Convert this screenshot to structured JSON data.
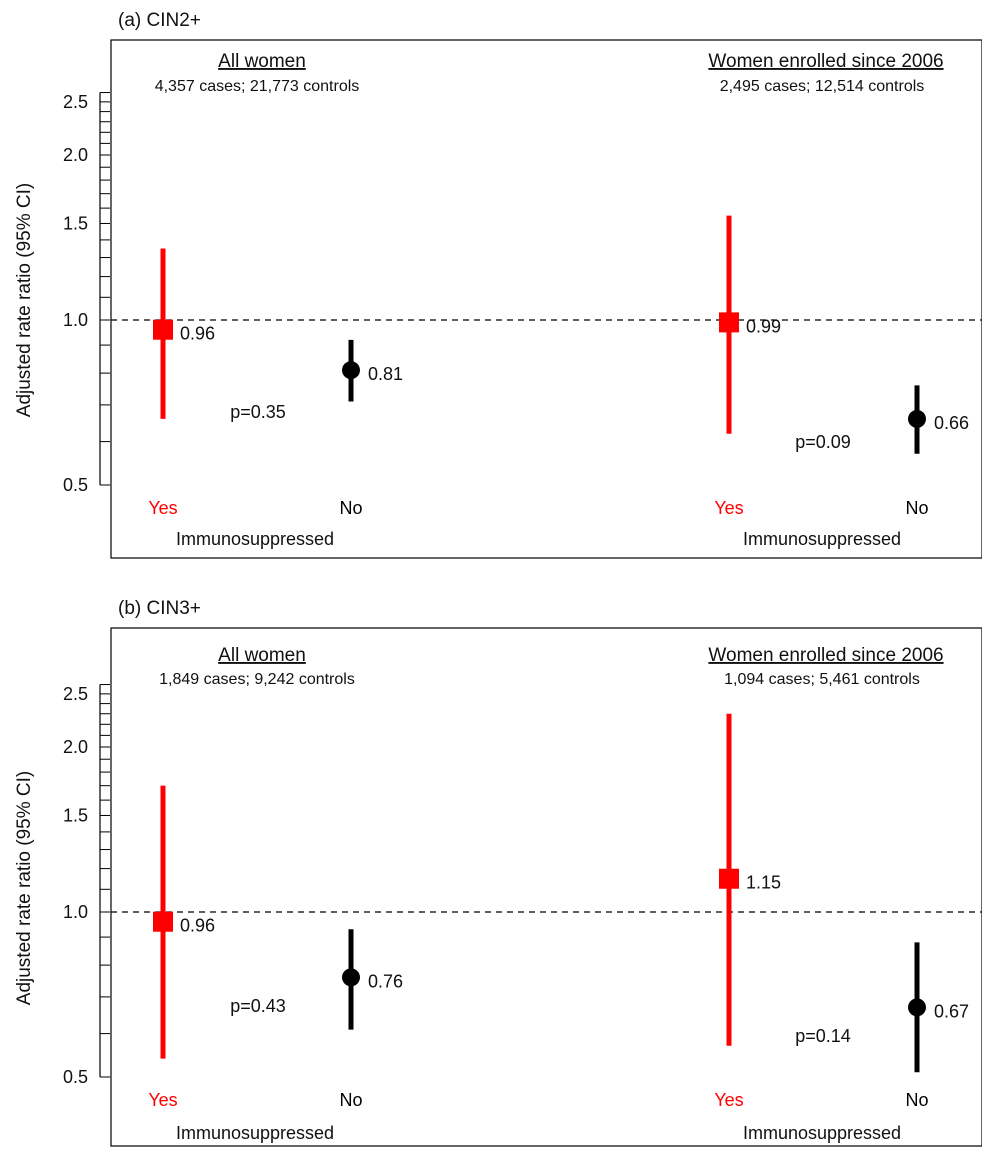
{
  "colors": {
    "immunosuppressed_yes": "#ff0000",
    "immunosuppressed_no": "#000000",
    "reference_line": "#000000"
  },
  "chart_data": [
    {
      "type": "scatter",
      "panel_label": "(a) CIN2+",
      "ylabel": "Adjusted rate ratio (95% CI)",
      "y_scale": "log",
      "ylim": [
        0.42,
        3.1
      ],
      "y_ticks": [
        "0.5",
        "1.0",
        "1.5",
        "2.0",
        "2.5"
      ],
      "reference_line": 1.0,
      "groups": [
        {
          "title": "All women",
          "counts": "4,357 cases; 21,773 controls",
          "xlabel": "Immunosuppressed",
          "p_value": "p=0.35",
          "points": [
            {
              "label": "Yes",
              "estimate": 0.96,
              "estimate_label": "0.96",
              "ci_low": 0.66,
              "ci_high": 1.35,
              "color": "#ff0000",
              "marker": "square"
            },
            {
              "label": "No",
              "estimate": 0.81,
              "estimate_label": "0.81",
              "ci_low": 0.71,
              "ci_high": 0.92,
              "color": "#000000",
              "marker": "circle"
            }
          ]
        },
        {
          "title": "Women enrolled since 2006",
          "counts": "2,495 cases; 12,514 controls",
          "xlabel": "Immunosuppressed",
          "p_value": "p=0.09",
          "points": [
            {
              "label": "Yes",
              "estimate": 0.99,
              "estimate_label": "0.99",
              "ci_low": 0.62,
              "ci_high": 1.55,
              "color": "#ff0000",
              "marker": "square"
            },
            {
              "label": "No",
              "estimate": 0.66,
              "estimate_label": "0.66",
              "ci_low": 0.57,
              "ci_high": 0.76,
              "color": "#000000",
              "marker": "circle"
            }
          ]
        }
      ]
    },
    {
      "type": "scatter",
      "panel_label": "(b) CIN3+",
      "ylabel": "Adjusted rate ratio (95% CI)",
      "y_scale": "log",
      "ylim": [
        0.42,
        3.1
      ],
      "y_ticks": [
        "0.5",
        "1.0",
        "1.5",
        "2.0",
        "2.5"
      ],
      "reference_line": 1.0,
      "groups": [
        {
          "title": "All women",
          "counts": "1,849 cases; 9,242 controls",
          "xlabel": "Immunosuppressed",
          "p_value": "p=0.43",
          "points": [
            {
              "label": "Yes",
              "estimate": 0.96,
              "estimate_label": "0.96",
              "ci_low": 0.54,
              "ci_high": 1.7,
              "color": "#ff0000",
              "marker": "square"
            },
            {
              "label": "No",
              "estimate": 0.76,
              "estimate_label": "0.76",
              "ci_low": 0.61,
              "ci_high": 0.93,
              "color": "#000000",
              "marker": "circle"
            }
          ]
        },
        {
          "title": "Women enrolled since 2006",
          "counts": "1,094 cases; 5,461 controls",
          "xlabel": "Immunosuppressed",
          "p_value": "p=0.14",
          "points": [
            {
              "label": "Yes",
              "estimate": 1.15,
              "estimate_label": "1.15",
              "ci_low": 0.57,
              "ci_high": 2.3,
              "color": "#ff0000",
              "marker": "square"
            },
            {
              "label": "No",
              "estimate": 0.67,
              "estimate_label": "0.67",
              "ci_low": 0.51,
              "ci_high": 0.88,
              "color": "#000000",
              "marker": "circle"
            }
          ]
        }
      ]
    }
  ]
}
